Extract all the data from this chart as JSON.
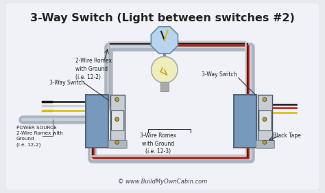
{
  "title": "3-Way Switch (Light between switches #2)",
  "title_fontsize": 11.5,
  "bg_outer": "#e8eaf0",
  "bg_inner": "#f0f2f7",
  "border_color": "#8899aa",
  "text_color": "#222222",
  "footer": "© www.BuildMyOwnCabin.com",
  "label_2wire_top": "2-Wire Romex\nwith Ground\n(i.e. 12-2)",
  "label_3way_left": "3-Way Switch",
  "label_3way_right": "3-Way Switch",
  "label_3wire_mid": "3-Wire Romex\nwith Ground\n(i.e. 12-3)",
  "label_power": "POWER SOURCE\n2-Wire Romex with\nGround\n(i.e. 12-2)",
  "label_black_tape": "Black Tape",
  "wire_black": "#1a1a1a",
  "wire_red": "#cc1100",
  "wire_white": "#cccccc",
  "wire_yellow": "#ddbb00",
  "wire_green": "#226622",
  "wire_gray": "#9aabb8",
  "conduit_color": "#aab5c2",
  "conduit_inner": "#c8d0da",
  "jbox_fill": "#7799bb",
  "jbox_border": "#556677",
  "switch_fill": "#c8cdd3",
  "switch_border": "#445566",
  "switch_nub": "#e0e3e6",
  "screw_color": "#c8a000",
  "light_oct_fill": "#b8d4ee",
  "light_oct_border": "#6688aa",
  "light_bulb_fill": "#eeeebb",
  "light_base": "#aaaaaa",
  "ps_fill": "#99aabb",
  "ps_border": "#556677",
  "wire_lw": 1.8,
  "conduit_lw": 9
}
